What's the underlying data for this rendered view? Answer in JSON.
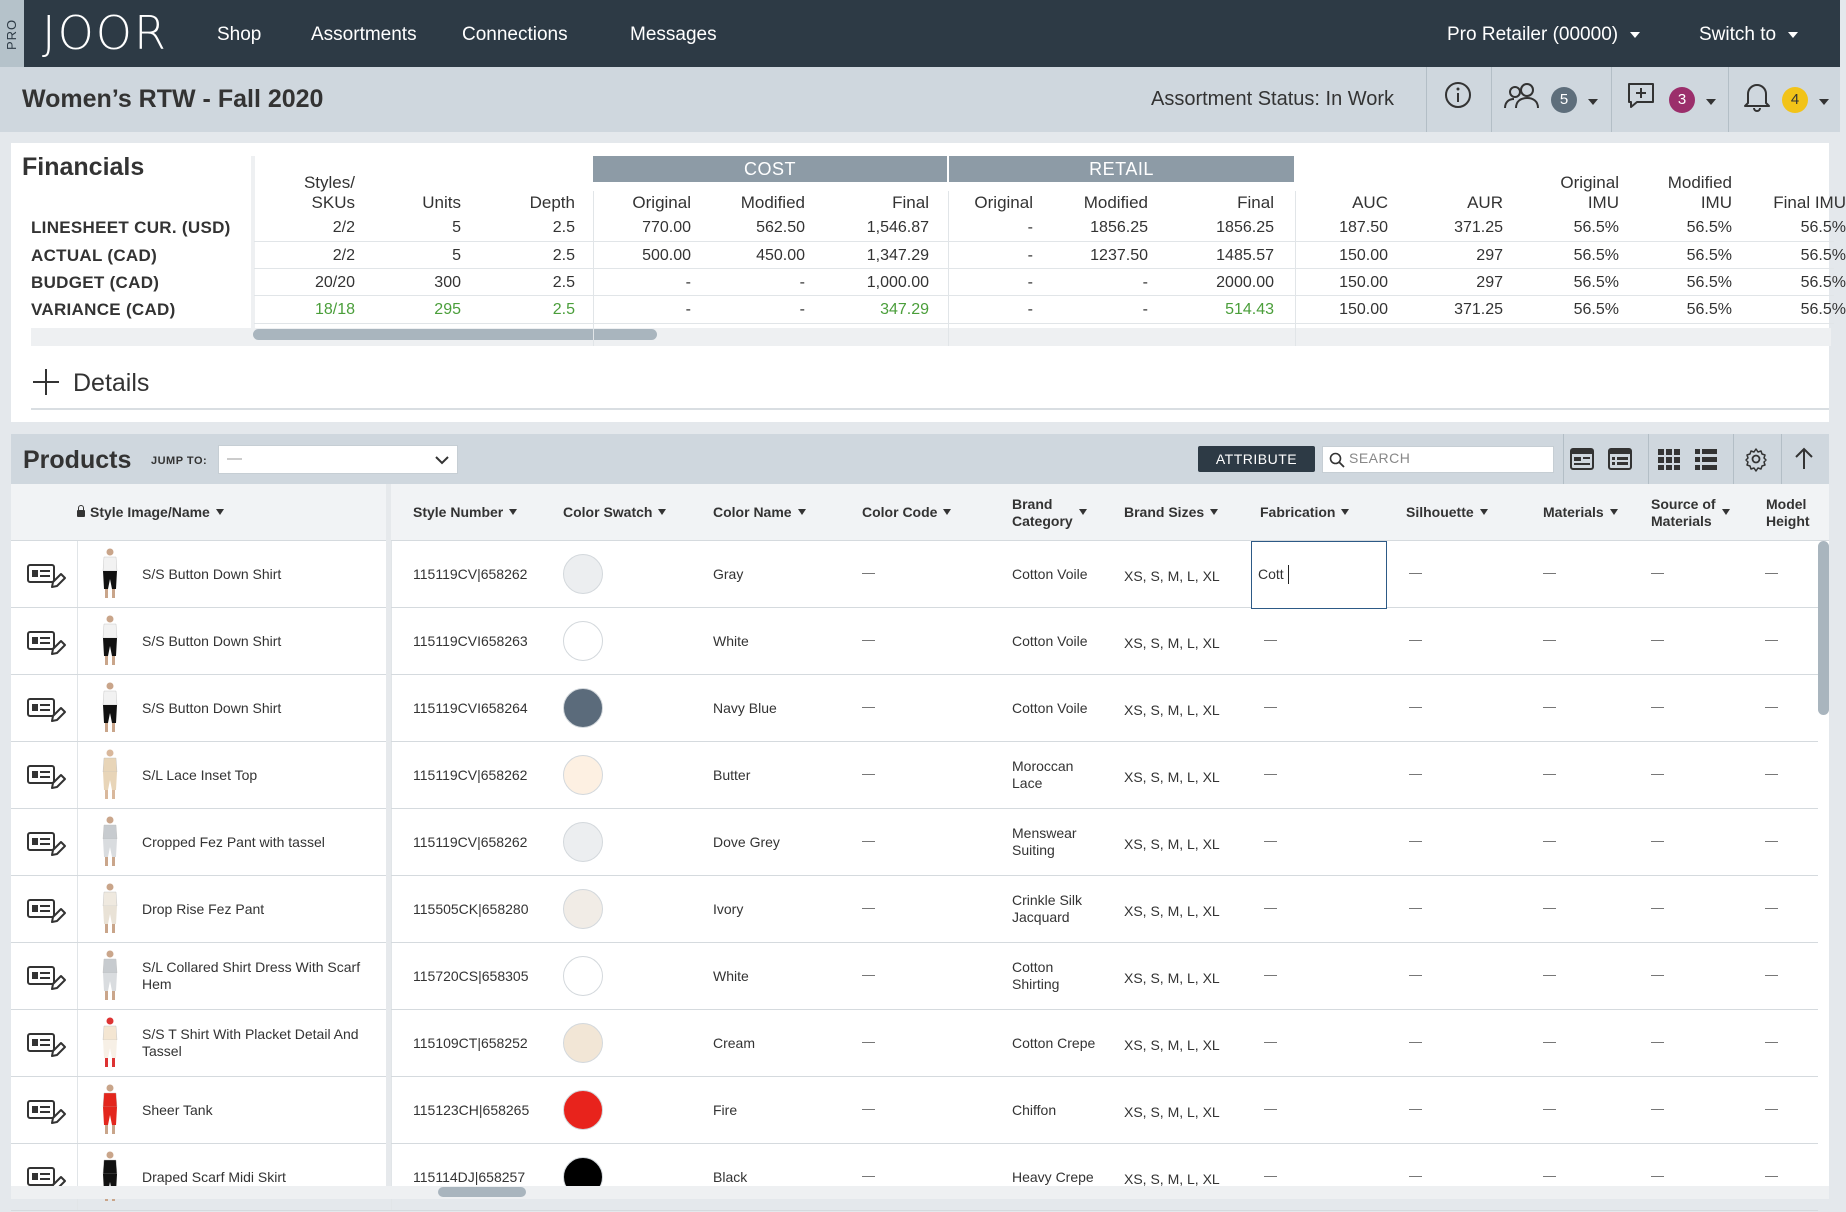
{
  "nav": {
    "pro_tab": "PRO",
    "logo": "JOOR",
    "items": [
      "Shop",
      "Assortments",
      "Connections",
      "Messages"
    ],
    "account": "Pro Retailer (00000)",
    "switch_to": "Switch to"
  },
  "header": {
    "title": "Women’s RTW - Fall 2020",
    "status": "Assortment Status: In Work",
    "users_count": "5",
    "comments_count": "3",
    "notifications_count": "4"
  },
  "colors": {
    "nav_bg": "#2d3a45",
    "green": "#4a9e3a",
    "users_badge": "#5e6e7b",
    "comments_badge": "#9b2e6b",
    "notifications_badge": "#f2c318"
  },
  "financials": {
    "title": "Financials",
    "groups": {
      "cost": "COST",
      "retail": "RETAIL"
    },
    "columns": [
      "Styles/\nSKUs",
      "Units",
      "Depth",
      "Original",
      "Modified",
      "Final",
      "Original",
      "Modified",
      "Final",
      "AUC",
      "AUR",
      "Original\nIMU",
      "Modified\nIMU",
      "Final IMU"
    ],
    "rows": [
      {
        "label": "LINESHEET CUR. (USD)",
        "values": [
          "2/2",
          "5",
          "2.5",
          "770.00",
          "562.50",
          "1,546.87",
          "-",
          "1856.25",
          "1856.25",
          "187.50",
          "371.25",
          "56.5%",
          "56.5%",
          "56.5%"
        ],
        "green": []
      },
      {
        "label": "ACTUAL (CAD)",
        "values": [
          "2/2",
          "5",
          "2.5",
          "500.00",
          "450.00",
          "1,347.29",
          "-",
          "1237.50",
          "1485.57",
          "150.00",
          "297",
          "56.5%",
          "56.5%",
          "56.5%"
        ],
        "green": []
      },
      {
        "label": "BUDGET (CAD)",
        "values": [
          "20/20",
          "300",
          "2.5",
          "-",
          "-",
          "1,000.00",
          "-",
          "-",
          "2000.00",
          "150.00",
          "297",
          "56.5%",
          "56.5%",
          "56.5%"
        ],
        "green": []
      },
      {
        "label": "VARIANCE (CAD)",
        "values": [
          "18/18",
          "295",
          "2.5",
          "-",
          "-",
          "347.29",
          "-",
          "-",
          "514.43",
          "150.00",
          "371.25",
          "56.5%",
          "56.5%",
          "56.5%"
        ],
        "green": [
          0,
          1,
          2,
          5,
          8
        ]
      }
    ],
    "details_label": "Details"
  },
  "products": {
    "title": "Products",
    "jump_to_label": "JUMP TO:",
    "jump_to_value": "—",
    "attribute_button": "ATTRIBUTE",
    "search_placeholder": "SEARCH",
    "columns": [
      "Style Image/Name",
      "Style Number",
      "Color Swatch",
      "Color Name",
      "Color Code",
      "Brand\nCategory",
      "Brand Sizes",
      "Fabrication",
      "Silhouette",
      "Materials",
      "Source of\nMaterials",
      "Model\nHeight"
    ],
    "editing_value": "Cott",
    "empty_value": "—",
    "rows": [
      {
        "name": "S/S Button Down Shirt",
        "style_number": "115119CV|658262",
        "swatch": "#eceef0",
        "color_name": "Gray",
        "brand_category": "Cotton Voile",
        "brand_sizes": "XS, S, M, L, XL",
        "figure": "bw"
      },
      {
        "name": "S/S Button Down Shirt",
        "style_number": "115119CVI658263",
        "swatch": "#ffffff",
        "color_name": "White",
        "brand_category": "Cotton Voile",
        "brand_sizes": "XS, S, M, L, XL",
        "figure": "bw"
      },
      {
        "name": "S/S Button Down Shirt",
        "style_number": "115119CVI658264",
        "swatch": "#5b6b7b",
        "color_name": "Navy Blue",
        "brand_category": "Cotton Voile",
        "brand_sizes": "XS, S, M, L, XL",
        "figure": "bw"
      },
      {
        "name": "S/L Lace Inset Top",
        "style_number": "115119CV|658262",
        "swatch": "#fdf0e2",
        "color_name": "Butter",
        "brand_category": "Moroccan\nLace",
        "brand_sizes": "XS, S, M, L, XL",
        "figure": "beige"
      },
      {
        "name": "Cropped Fez Pant with tassel",
        "style_number": "115119CV|658262",
        "swatch": "#eceef0",
        "color_name": "Dove Grey",
        "brand_category": "Menswear\nSuiting",
        "brand_sizes": "XS, S, M, L, XL",
        "figure": "grey"
      },
      {
        "name": "Drop Rise Fez Pant",
        "style_number": "115505CK|658280",
        "swatch": "#f1ece6",
        "color_name": "Ivory",
        "brand_category": "Crinkle Silk\nJacquard",
        "brand_sizes": "XS, S, M, L, XL",
        "figure": "ivory"
      },
      {
        "name": "S/L Collared Shirt Dress With Scarf\nHem",
        "style_number": "115720CS|658305",
        "swatch": "#ffffff",
        "color_name": "White",
        "brand_category": "Cotton\nShirting",
        "brand_sizes": "XS, S, M, L, XL",
        "figure": "grey"
      },
      {
        "name": "S/S T Shirt With Placket Detail And\nTassel",
        "style_number": "115109CT|658252",
        "swatch": "#f2e6d6",
        "color_name": "Cream",
        "brand_category": "Cotton Crepe",
        "brand_sizes": "XS, S, M, L, XL",
        "figure": "cream"
      },
      {
        "name": "Sheer Tank",
        "style_number": "115123CH|658265",
        "swatch": "#e8231c",
        "color_name": "Fire",
        "brand_category": "Chiffon",
        "brand_sizes": "XS, S, M, L, XL",
        "figure": "red"
      },
      {
        "name": "Draped Scarf Midi Skirt",
        "style_number": "115114DJ|658257",
        "swatch": "#000000",
        "color_name": "Black",
        "brand_category": "Heavy Crepe",
        "brand_sizes": "XS, S, M, L, XL",
        "figure": "black"
      }
    ]
  }
}
